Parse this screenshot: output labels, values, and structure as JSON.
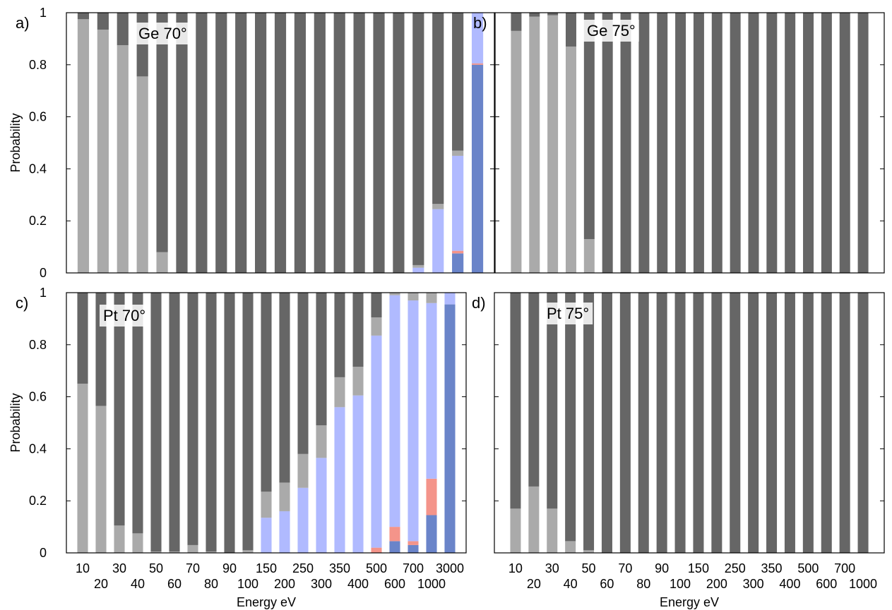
{
  "colors": {
    "dark_gray": "#666666",
    "light_gray": "#aaaaaa",
    "light_blue": "#b0baff",
    "salmon": "#f4948a",
    "dark_blue": "#6a84c9"
  },
  "chart_data": [
    {
      "type": "bar",
      "stacked": true,
      "panel": "a)",
      "title": "Ge 70°",
      "xlabel": "",
      "ylabel": "Probability",
      "ylim": [
        0,
        1
      ],
      "yticks": [
        "0",
        "0.2",
        "0.4",
        "0.6",
        "0.8",
        "1"
      ],
      "categories": [
        "10",
        "20",
        "30",
        "40",
        "50",
        "60",
        "70",
        "80",
        "90",
        "100",
        "150",
        "200",
        "250",
        "300",
        "350",
        "400",
        "500",
        "600",
        "700",
        "1000",
        "3000"
      ],
      "show_xticks": false,
      "stack_order": [
        "dark_blue",
        "salmon",
        "light_blue",
        "light_gray",
        "dark_gray"
      ],
      "series": [
        {
          "color_key": "dark_blue",
          "values": [
            0,
            0,
            0,
            0,
            0,
            0,
            0,
            0,
            0,
            0,
            0,
            0,
            0,
            0,
            0,
            0,
            0,
            0,
            0,
            0.075,
            0.8
          ]
        },
        {
          "color_key": "salmon",
          "values": [
            0,
            0,
            0,
            0,
            0,
            0,
            0,
            0,
            0,
            0,
            0,
            0,
            0,
            0,
            0,
            0,
            0,
            0,
            0,
            0.01,
            0.005
          ]
        },
        {
          "color_key": "light_blue",
          "values": [
            0,
            0,
            0,
            0,
            0,
            0,
            0,
            0,
            0,
            0,
            0,
            0,
            0,
            0,
            0,
            0,
            0,
            0.02,
            0.245,
            0.365,
            0.195
          ]
        },
        {
          "color_key": "light_gray",
          "values": [
            0.975,
            0.935,
            0.875,
            0.755,
            0.08,
            0,
            0,
            0,
            0,
            0,
            0,
            0,
            0,
            0,
            0,
            0,
            0,
            0.01,
            0.02,
            0.02,
            0
          ]
        },
        {
          "color_key": "dark_gray",
          "values": [
            0.025,
            0.065,
            0.125,
            0.245,
            0.92,
            1,
            1,
            1,
            1,
            1,
            1,
            1,
            1,
            1,
            1,
            1,
            1,
            0.97,
            0.735,
            0.53,
            0
          ]
        }
      ]
    },
    {
      "type": "bar",
      "stacked": true,
      "panel": "b)",
      "title": "Ge 75°",
      "xlabel": "",
      "ylabel": "",
      "ylim": [
        0,
        1
      ],
      "yticks": [],
      "categories": [
        "10",
        "20",
        "30",
        "40",
        "50",
        "60",
        "70",
        "80",
        "90",
        "100",
        "150",
        "200",
        "250",
        "300",
        "350",
        "400",
        "500",
        "600",
        "700",
        "1000"
      ],
      "show_xticks": false,
      "stack_order": [
        "light_gray",
        "dark_gray"
      ],
      "series": [
        {
          "color_key": "light_gray",
          "values": [
            0.93,
            0.985,
            0.99,
            0.87,
            0.13,
            0,
            0,
            0,
            0,
            0,
            0,
            0,
            0,
            0,
            0,
            0,
            0,
            0,
            0,
            0
          ]
        },
        {
          "color_key": "dark_gray",
          "values": [
            0.07,
            0.015,
            0.01,
            0.13,
            0.87,
            1,
            1,
            1,
            1,
            1,
            1,
            1,
            1,
            1,
            1,
            1,
            1,
            1,
            1,
            1
          ]
        }
      ]
    },
    {
      "type": "bar",
      "stacked": true,
      "panel": "c)",
      "title": "Pt 70°",
      "xlabel": "Energy eV",
      "ylabel": "Probability",
      "ylim": [
        0,
        1
      ],
      "yticks": [
        "0",
        "0.2",
        "0.4",
        "0.6",
        "0.8",
        "1"
      ],
      "categories": [
        "10",
        "20",
        "30",
        "40",
        "50",
        "60",
        "70",
        "80",
        "90",
        "100",
        "150",
        "200",
        "250",
        "300",
        "350",
        "400",
        "500",
        "600",
        "700",
        "1000",
        "3000"
      ],
      "show_xticks": true,
      "stack_order": [
        "dark_blue",
        "salmon",
        "light_blue",
        "light_gray",
        "dark_gray"
      ],
      "series": [
        {
          "color_key": "dark_blue",
          "values": [
            0,
            0,
            0,
            0,
            0,
            0,
            0,
            0,
            0,
            0,
            0,
            0,
            0,
            0,
            0,
            0,
            0,
            0.045,
            0.03,
            0.145,
            0.955
          ]
        },
        {
          "color_key": "salmon",
          "values": [
            0,
            0,
            0,
            0,
            0,
            0,
            0,
            0,
            0,
            0,
            0,
            0,
            0,
            0,
            0,
            0,
            0.02,
            0.055,
            0.015,
            0.14,
            0
          ]
        },
        {
          "color_key": "light_blue",
          "values": [
            0,
            0,
            0,
            0,
            0,
            0,
            0,
            0,
            0,
            0,
            0.135,
            0.16,
            0.25,
            0.365,
            0.56,
            0.605,
            0.815,
            0.89,
            0.925,
            0.675,
            0.045
          ]
        },
        {
          "color_key": "light_gray",
          "values": [
            0.65,
            0.565,
            0.105,
            0.075,
            0.005,
            0.005,
            0.03,
            0.005,
            0,
            0.01,
            0.1,
            0.11,
            0.13,
            0.125,
            0.115,
            0.11,
            0.07,
            0.01,
            0.03,
            0.04,
            0
          ]
        },
        {
          "color_key": "dark_gray",
          "values": [
            0.35,
            0.435,
            0.895,
            0.925,
            0.995,
            0.995,
            0.97,
            0.995,
            1,
            0.99,
            0.765,
            0.73,
            0.62,
            0.51,
            0.325,
            0.285,
            0.095,
            0,
            0,
            0,
            0
          ]
        }
      ]
    },
    {
      "type": "bar",
      "stacked": true,
      "panel": "d)",
      "title": "Pt 75°",
      "xlabel": "Energy eV",
      "ylabel": "",
      "ylim": [
        0,
        1
      ],
      "yticks": [],
      "categories": [
        "10",
        "20",
        "30",
        "40",
        "50",
        "60",
        "70",
        "80",
        "90",
        "100",
        "150",
        "200",
        "250",
        "300",
        "350",
        "400",
        "500",
        "600",
        "700",
        "1000"
      ],
      "show_xticks": true,
      "stack_order": [
        "light_gray",
        "dark_gray"
      ],
      "series": [
        {
          "color_key": "light_gray",
          "values": [
            0.17,
            0.255,
            0.17,
            0.045,
            0.01,
            0,
            0,
            0,
            0,
            0,
            0,
            0,
            0,
            0,
            0,
            0,
            0,
            0,
            0,
            0
          ]
        },
        {
          "color_key": "dark_gray",
          "values": [
            0.83,
            0.745,
            0.83,
            0.955,
            0.99,
            1,
            1,
            1,
            1,
            1,
            1,
            1,
            1,
            1,
            1,
            1,
            1,
            1,
            1,
            1
          ]
        }
      ]
    }
  ]
}
